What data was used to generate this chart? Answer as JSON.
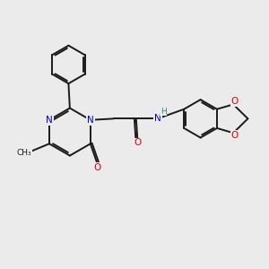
{
  "bg_color": "#ebebeb",
  "atom_colors": {
    "C": "#1a1a1a",
    "N": "#0000ee",
    "O": "#dd0000",
    "H": "#338888"
  },
  "bond_color": "#1a1a1a",
  "bond_width": 1.4,
  "figsize": [
    3.0,
    3.0
  ],
  "dpi": 100
}
